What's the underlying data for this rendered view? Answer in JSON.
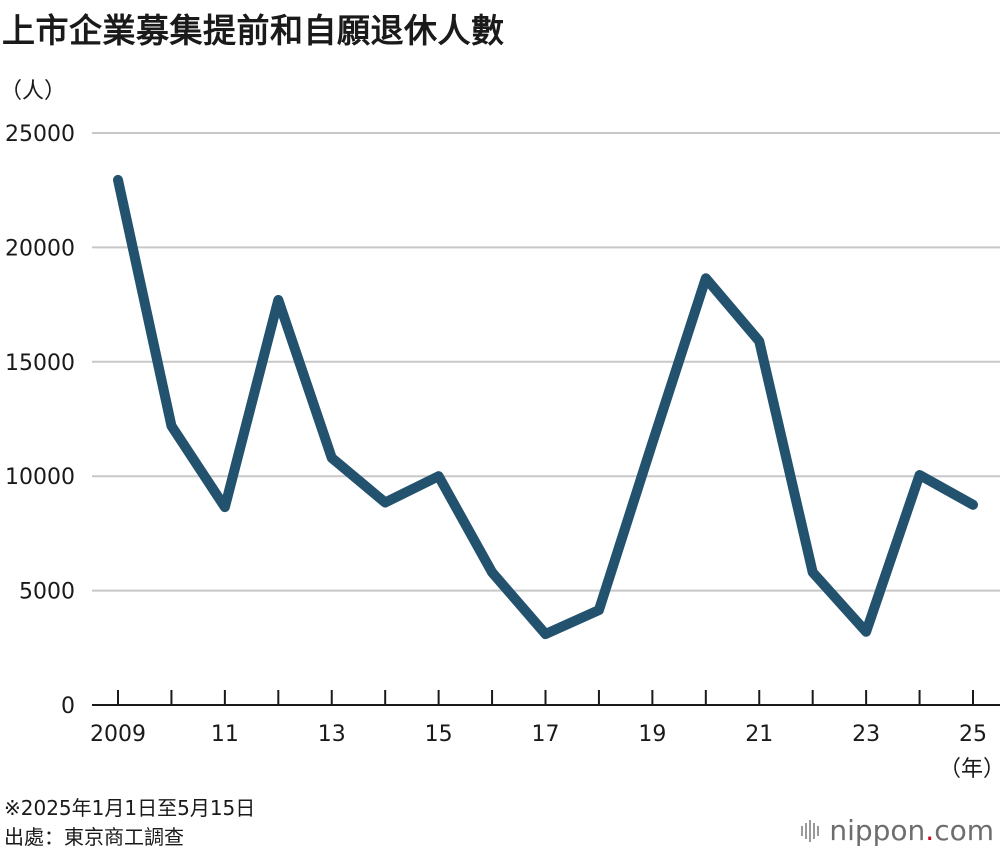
{
  "title": "上市企業募集提前和自願退休人數",
  "notes": [
    "※2025年1月1日至5月15日",
    "出處：東京商工調查"
  ],
  "brand": {
    "name": "nippon",
    "dot": ".",
    "suffix": "com",
    "dot_color": "#d5001f"
  },
  "line_color": "#23526e",
  "chart_data": {
    "type": "line",
    "y_unit_label": "（人）",
    "x_unit_label": "（年）",
    "x": [
      2009,
      2010,
      2011,
      2012,
      2013,
      2014,
      2015,
      2016,
      2017,
      2018,
      2019,
      2020,
      2021,
      2022,
      2023,
      2024,
      2025
    ],
    "x_tick_labels": [
      "2009",
      "11",
      "13",
      "15",
      "17",
      "19",
      "21",
      "23",
      "25"
    ],
    "x_tick_label_years": [
      2009,
      2011,
      2013,
      2015,
      2017,
      2019,
      2021,
      2023,
      2025
    ],
    "series": [
      {
        "values": [
          22950,
          12200,
          8650,
          17700,
          10800,
          8850,
          10000,
          5800,
          3100,
          4150,
          11450,
          18650,
          15900,
          5800,
          3200,
          10050,
          8750
        ]
      }
    ],
    "y_ticks": [
      0,
      5000,
      10000,
      15000,
      20000,
      25000
    ],
    "y_tick_labels": [
      "0",
      "5000",
      "10000",
      "15000",
      "20000",
      "25000"
    ],
    "ylim": [
      0,
      25000
    ],
    "xlim": [
      2009,
      2025
    ],
    "grid": true
  }
}
